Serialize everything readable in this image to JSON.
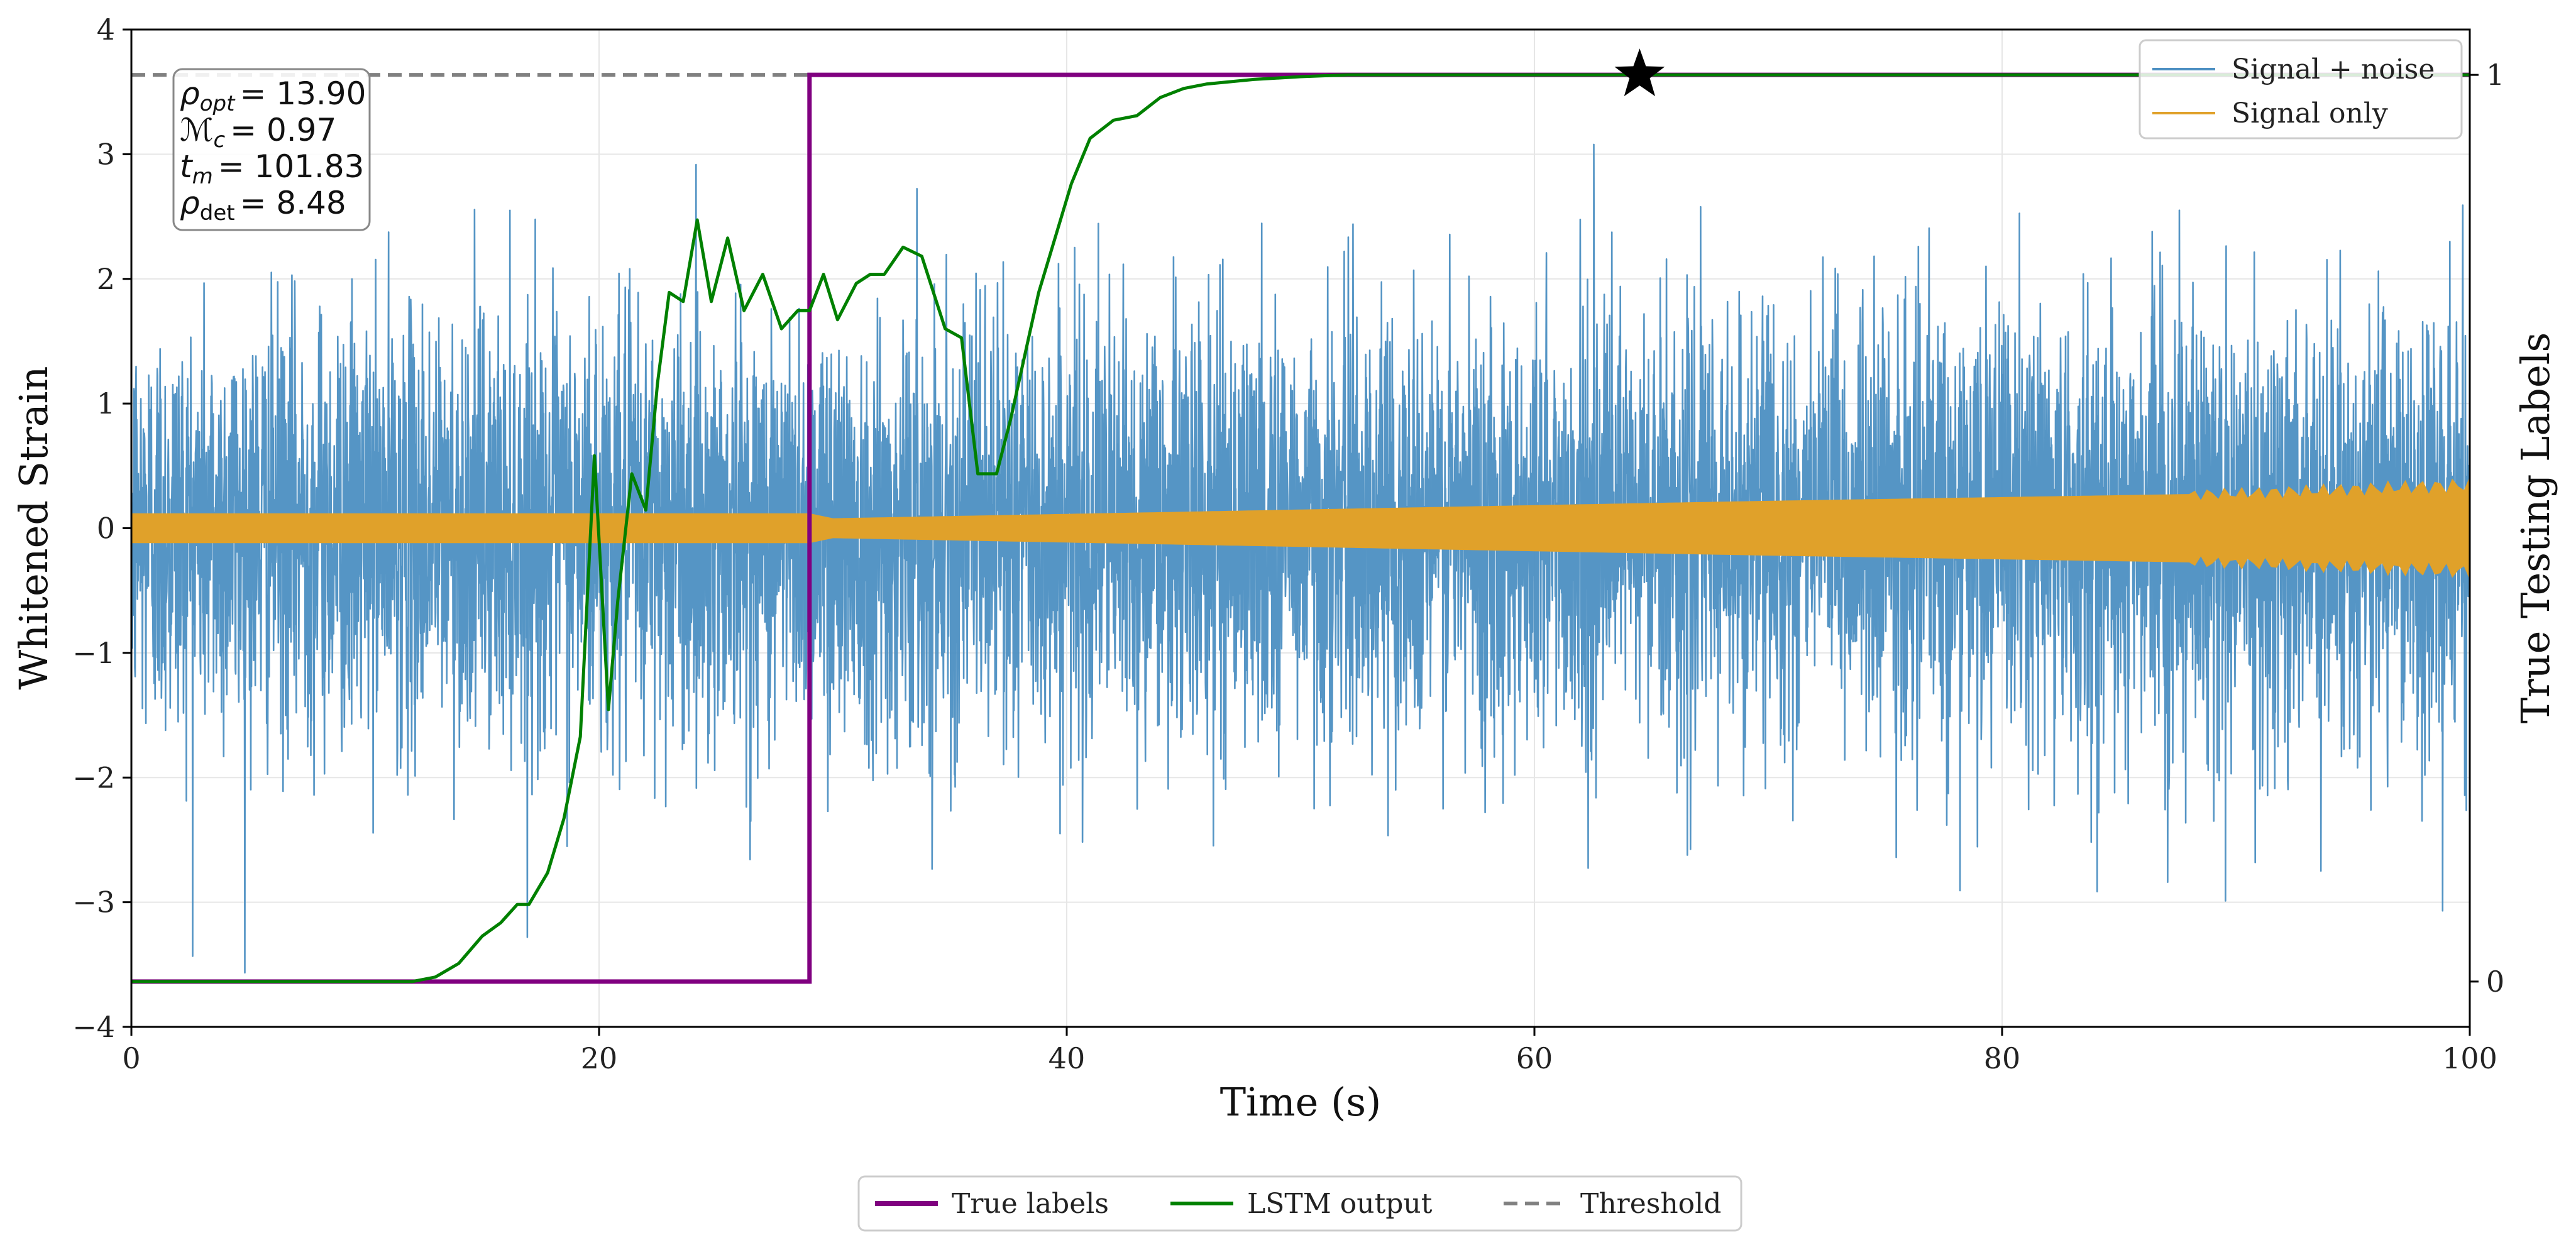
{
  "chart_data": {
    "type": "line",
    "xlabel": "Time (s)",
    "ylabel": "Whitened Strain",
    "ylabel_right": "True Testing Labels",
    "xlim": [
      0,
      100
    ],
    "ylim": [
      -4,
      4
    ],
    "ylim_right": [
      -0.05,
      1.05
    ],
    "x_ticks": [
      0,
      20,
      40,
      60,
      80,
      100
    ],
    "y_ticks": [
      -4,
      -3,
      -2,
      -1,
      0,
      1,
      2,
      3,
      4
    ],
    "y_ticks_right": [
      0,
      1
    ],
    "x_tick_labels": [
      "0",
      "20",
      "40",
      "60",
      "80",
      "100"
    ],
    "y_tick_labels": [
      "−4",
      "−3",
      "−2",
      "−1",
      "0",
      "1",
      "2",
      "3",
      "4"
    ],
    "y_tick_labels_right": [
      "0",
      "1"
    ],
    "grid": true,
    "annotation": {
      "lines": [
        {
          "sym": "ρ",
          "sub": "opt",
          "value": "= 13.90"
        },
        {
          "sym": "ℳ",
          "sub": "c",
          "value": "= 0.97"
        },
        {
          "sym": "t",
          "sub": "m",
          "value": "= 101.83"
        },
        {
          "sym": "ρ",
          "sub": "det",
          "value": "= 8.48"
        }
      ]
    },
    "series": [
      {
        "name": "Signal + noise",
        "color": "#4c8fc2",
        "kind": "noise",
        "std": 0.85,
        "peak_range": [
          -4.0,
          4.0
        ]
      },
      {
        "name": "Signal only",
        "color": "#e0a12a",
        "kind": "band",
        "envelope_x": [
          0,
          29,
          30,
          50,
          70,
          90,
          100
        ],
        "envelope_amp": [
          0.12,
          0.12,
          0.08,
          0.15,
          0.22,
          0.28,
          0.35
        ]
      },
      {
        "name": "True labels",
        "color": "#800080",
        "axis": "right",
        "x": [
          0,
          29,
          29,
          100
        ],
        "y": [
          0,
          0,
          1,
          1
        ]
      },
      {
        "name": "LSTM output",
        "color": "#008000",
        "axis": "right",
        "x": [
          0,
          12,
          13,
          14,
          15,
          15.8,
          16.5,
          17,
          17.8,
          18.5,
          19.2,
          19.8,
          20.4,
          20.8,
          21.4,
          22,
          22.5,
          23,
          23.6,
          24.2,
          24.8,
          25.5,
          26.2,
          27,
          27.8,
          28.5,
          29,
          29.6,
          30.2,
          31,
          31.6,
          32.2,
          33,
          33.8,
          34.8,
          35.5,
          36.2,
          37,
          37.6,
          38.2,
          38.8,
          39.5,
          40.2,
          41,
          42,
          43,
          44,
          45,
          46,
          48,
          50,
          52,
          55,
          60,
          65,
          70,
          80,
          100
        ],
        "y": [
          0,
          0,
          0.005,
          0.02,
          0.05,
          0.065,
          0.085,
          0.085,
          0.12,
          0.18,
          0.27,
          0.58,
          0.3,
          0.42,
          0.56,
          0.52,
          0.66,
          0.76,
          0.75,
          0.84,
          0.75,
          0.82,
          0.74,
          0.78,
          0.72,
          0.74,
          0.74,
          0.78,
          0.73,
          0.77,
          0.78,
          0.78,
          0.81,
          0.8,
          0.72,
          0.71,
          0.56,
          0.56,
          0.62,
          0.69,
          0.76,
          0.82,
          0.88,
          0.93,
          0.95,
          0.955,
          0.975,
          0.985,
          0.99,
          0.995,
          0.998,
          1.0,
          1.0,
          1.0,
          1.0,
          1.0,
          1.0,
          1.0
        ]
      },
      {
        "name": "Threshold",
        "color": "#808080",
        "axis": "right",
        "y": 1.0
      }
    ],
    "marker": {
      "x": 64.5,
      "y": 1.0,
      "symbol": "star"
    },
    "legend_top_right": [
      "Signal + noise",
      "Signal only"
    ],
    "legend_bottom": [
      "True labels",
      "LSTM output",
      "Threshold"
    ]
  }
}
